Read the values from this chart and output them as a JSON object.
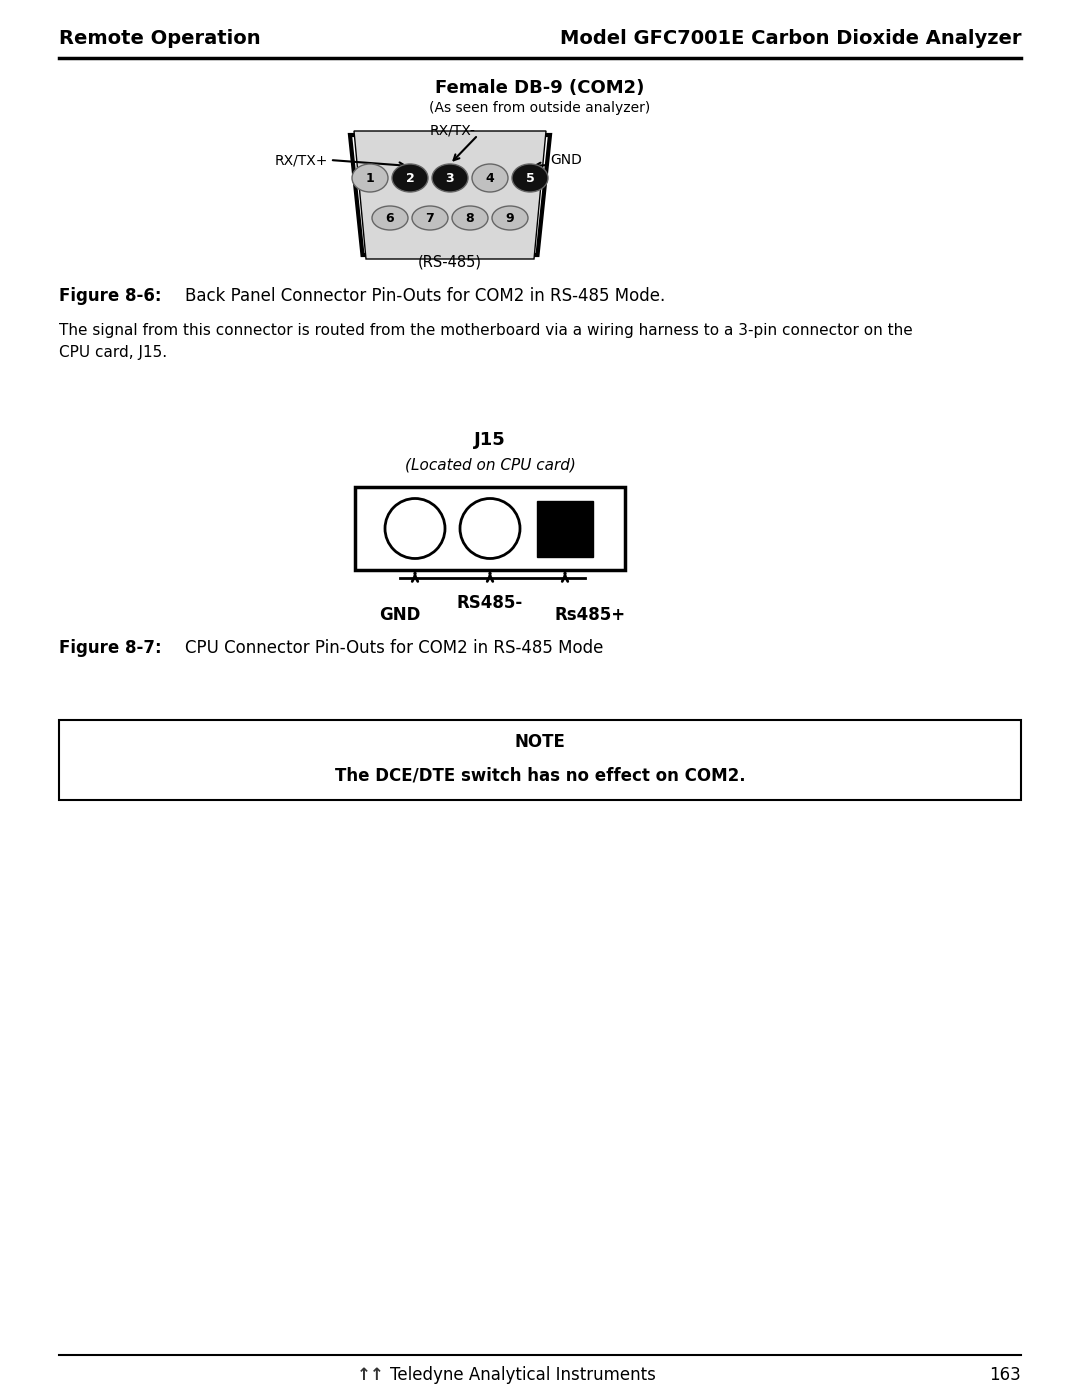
{
  "page_bg": "#ffffff",
  "header_left": "Remote Operation",
  "header_right": "Model GFC7001E Carbon Dioxide Analyzer",
  "footer_text": "Teledyne Analytical Instruments",
  "footer_page": "163",
  "db9_title": "Female DB-9 (COM2)",
  "db9_subtitle": "(As seen from outside analyzer)",
  "db9_label": "(RS-485)",
  "db9_caption_bold": "Figure 8-6:",
  "db9_caption_text": "Back Panel Connector Pin-Outs for COM2 in RS-485 Mode.",
  "body_text_line1": "The signal from this connector is routed from the motherboard via a wiring harness to a 3-pin connector on the",
  "body_text_line2": "CPU card, J15.",
  "j15_title": "J15",
  "j15_subtitle": "(Located on CPU card)",
  "j15_caption_bold": "Figure 8-7:",
  "j15_caption_text": "CPU Connector Pin-Outs for COM2 in RS-485 Mode",
  "note_bold": "NOTE",
  "note_text": "The DCE/DTE switch has no effect on COM2.",
  "top_pin_colors": [
    "#c0c0c0",
    "#111111",
    "#111111",
    "#c0c0c0",
    "#111111"
  ],
  "top_pin_text_colors": [
    "#000000",
    "#ffffff",
    "#ffffff",
    "#000000",
    "#ffffff"
  ],
  "bot_pin_colors": [
    "#c0c0c0",
    "#c0c0c0",
    "#c0c0c0",
    "#c0c0c0"
  ]
}
